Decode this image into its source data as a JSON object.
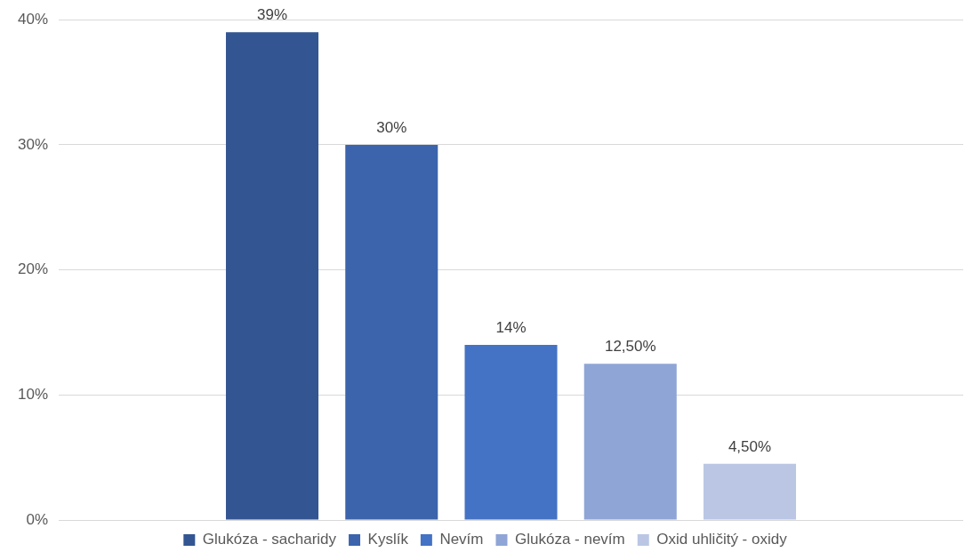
{
  "chart_data": {
    "type": "bar",
    "categories": [
      null
    ],
    "series": [
      {
        "name": "Glukóza - sacharidy",
        "color": "#335592",
        "values": [
          39
        ],
        "value_labels": [
          "39%"
        ]
      },
      {
        "name": "Kyslík",
        "color": "#3c64ac",
        "values": [
          30
        ],
        "value_labels": [
          "30%"
        ]
      },
      {
        "name": "Nevím",
        "color": "#4472c4",
        "values": [
          14
        ],
        "value_labels": [
          "14%"
        ]
      },
      {
        "name": "Glukóza - nevím",
        "color": "#8fa5d6",
        "values": [
          12.5
        ],
        "value_labels": [
          "12,50%"
        ]
      },
      {
        "name": "Oxid uhličitý - oxidy",
        "color": "#bac6e4",
        "values": [
          4.5
        ],
        "value_labels": [
          "4,50%"
        ]
      }
    ],
    "ylim": [
      0,
      40
    ],
    "yticks": [
      {
        "value": 0,
        "label": "0%"
      },
      {
        "value": 10,
        "label": "10%"
      },
      {
        "value": 20,
        "label": "20%"
      },
      {
        "value": 30,
        "label": "30%"
      },
      {
        "value": 40,
        "label": "40%"
      }
    ],
    "grid": "y",
    "legend": "bottom"
  }
}
